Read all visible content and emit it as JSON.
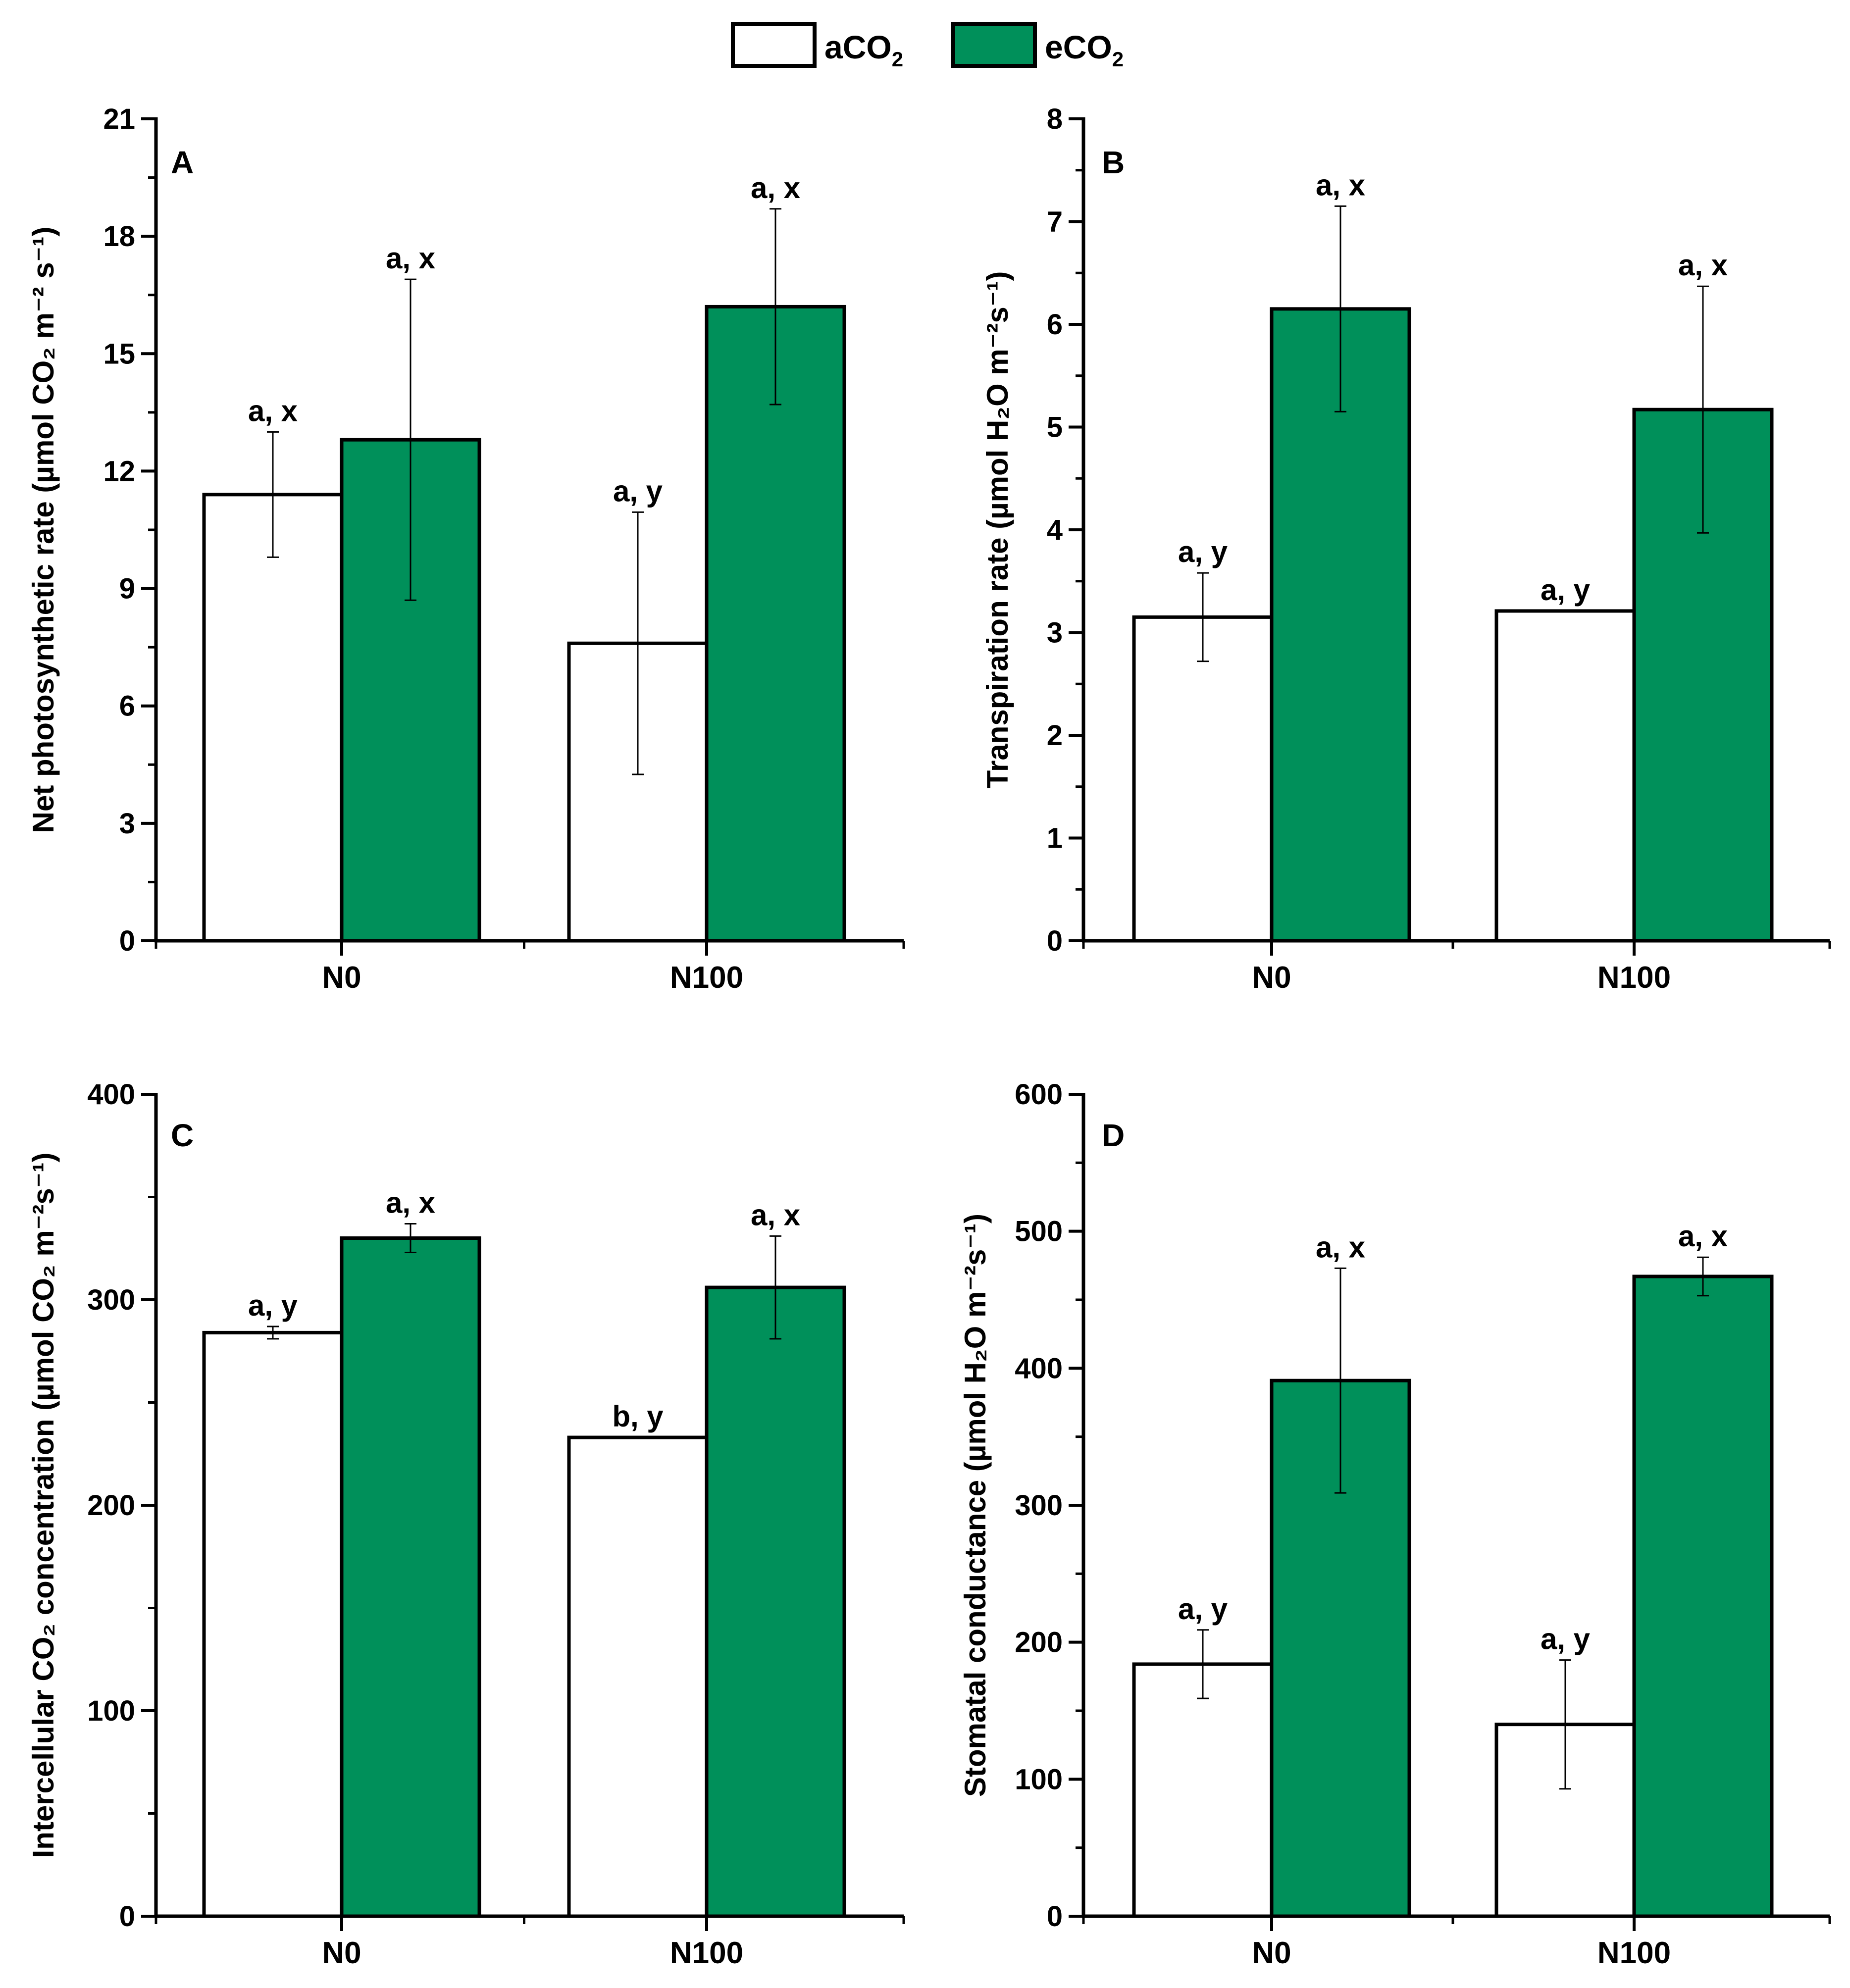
{
  "legend": {
    "items": [
      {
        "label": "aCO",
        "sub": "2",
        "color": "#ffffff"
      },
      {
        "label": "eCO",
        "sub": "2",
        "color": "#00905a"
      }
    ]
  },
  "chart_data": [
    {
      "type": "bar",
      "panel": "A",
      "ylabel": "Net photosynthetic rate (µmol CO₂ m⁻² s⁻¹)",
      "ylim": [
        0,
        21
      ],
      "yticks": [
        0,
        3,
        6,
        9,
        12,
        15,
        18,
        21
      ],
      "categories": [
        "N0",
        "N100"
      ],
      "series": [
        {
          "name": "aCO2",
          "values": [
            11.4,
            7.6
          ],
          "errors": [
            1.6,
            3.35
          ],
          "labels": [
            "a, x",
            "a, y"
          ]
        },
        {
          "name": "eCO2",
          "values": [
            12.8,
            16.2
          ],
          "errors": [
            4.1,
            2.5
          ],
          "labels": [
            "a, x",
            "a, x"
          ]
        }
      ]
    },
    {
      "type": "bar",
      "panel": "B",
      "ylabel": "Transpiration rate (µmol H₂O m⁻²s⁻¹)",
      "ylim": [
        0,
        8
      ],
      "yticks": [
        0,
        1,
        2,
        3,
        4,
        5,
        6,
        7,
        8
      ],
      "categories": [
        "N0",
        "N100"
      ],
      "series": [
        {
          "name": "aCO2",
          "values": [
            3.15,
            3.21
          ],
          "errors": [
            0.43,
            0.0
          ],
          "labels": [
            "a, y",
            "a, y"
          ]
        },
        {
          "name": "eCO2",
          "values": [
            6.15,
            5.17
          ],
          "errors": [
            1.0,
            1.2
          ],
          "labels": [
            "a, x",
            "a, x"
          ]
        }
      ]
    },
    {
      "type": "bar",
      "panel": "C",
      "ylabel": "Intercellular CO₂ concentration (µmol CO₂ m⁻²s⁻¹)",
      "ylim": [
        0,
        400
      ],
      "yticks": [
        0,
        100,
        200,
        300,
        400
      ],
      "categories": [
        "N0",
        "N100"
      ],
      "series": [
        {
          "name": "aCO2",
          "values": [
            284,
            233
          ],
          "errors": [
            3,
            0
          ],
          "labels": [
            "a, y",
            "b, y"
          ]
        },
        {
          "name": "eCO2",
          "values": [
            330,
            306
          ],
          "errors": [
            7,
            25
          ],
          "labels": [
            "a, x",
            "a, x"
          ]
        }
      ]
    },
    {
      "type": "bar",
      "panel": "D",
      "ylabel": "Stomatal conductance (µmol H₂O m⁻²s⁻¹)",
      "ylim": [
        0,
        600
      ],
      "yticks": [
        0,
        100,
        200,
        300,
        400,
        500,
        600
      ],
      "categories": [
        "N0",
        "N100"
      ],
      "series": [
        {
          "name": "aCO2",
          "values": [
            184,
            140
          ],
          "errors": [
            25,
            47
          ],
          "labels": [
            "a, y",
            "a, y"
          ]
        },
        {
          "name": "eCO2",
          "values": [
            391,
            467
          ],
          "errors": [
            82,
            14
          ],
          "labels": [
            "a, x",
            "a, x"
          ]
        }
      ]
    }
  ]
}
